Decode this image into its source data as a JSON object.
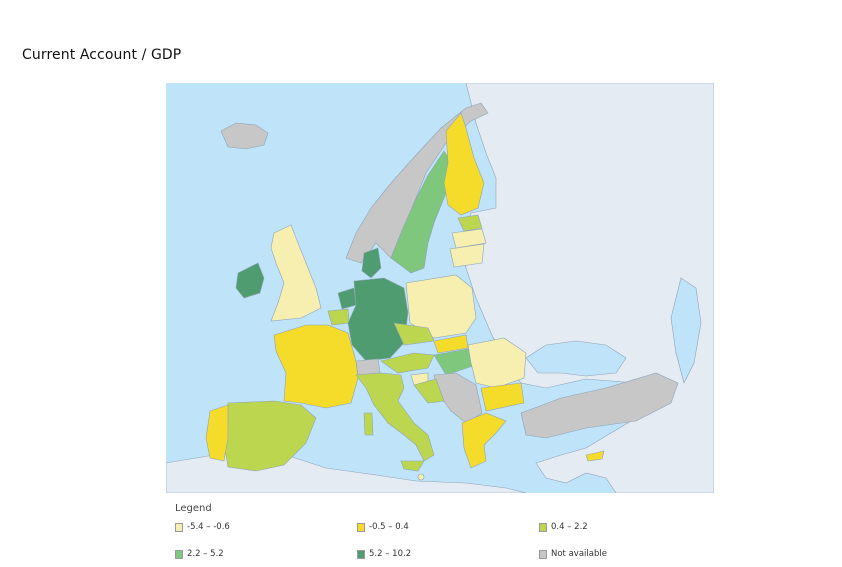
{
  "title": "Current Account / GDP",
  "legend": {
    "title": "Legend",
    "items": [
      {
        "label": "-5.4 – -0.6",
        "color": "#f6efb0"
      },
      {
        "label": "-0.5 – 0.4",
        "color": "#f5dc2a"
      },
      {
        "label": "0.4 – 2.2",
        "color": "#bdd64f"
      },
      {
        "label": "2.2 – 5.2",
        "color": "#7fc77d"
      },
      {
        "label": "5.2 – 10.2",
        "color": "#4f9c70"
      },
      {
        "label": "Not available",
        "color": "#c7c7c7"
      }
    ]
  },
  "colors": {
    "sea": "#bfe3f8",
    "non_eu_land": "#e4ebf2",
    "borders": "#8fa3b8"
  }
}
